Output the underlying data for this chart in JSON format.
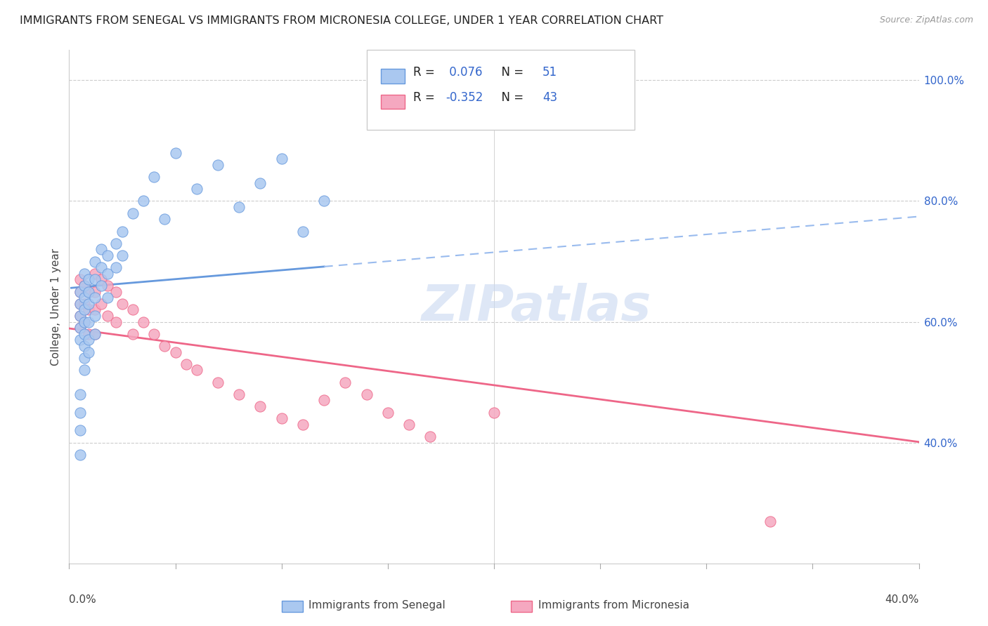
{
  "title": "IMMIGRANTS FROM SENEGAL VS IMMIGRANTS FROM MICRONESIA COLLEGE, UNDER 1 YEAR CORRELATION CHART",
  "source": "Source: ZipAtlas.com",
  "ylabel": "College, Under 1 year",
  "xlim": [
    0.0,
    0.4
  ],
  "ylim": [
    0.2,
    1.05
  ],
  "ytick_vals": [
    0.4,
    0.6,
    0.8,
    1.0
  ],
  "ytick_labels": [
    "40.0%",
    "60.0%",
    "80.0%",
    "100.0%"
  ],
  "senegal_R": 0.076,
  "senegal_N": 51,
  "micronesia_R": -0.352,
  "micronesia_N": 43,
  "senegal_color": "#aac8f0",
  "micronesia_color": "#f5a8c0",
  "senegal_edge_color": "#6699dd",
  "micronesia_edge_color": "#ee6688",
  "senegal_trend_color": "#6699dd",
  "micronesia_trend_color": "#ee6688",
  "senegal_dash_color": "#99bbee",
  "watermark_color": "#d0ddf0",
  "background_color": "#ffffff",
  "grid_color": "#cccccc",
  "border_color": "#cccccc",
  "senegal_x": [
    0.005,
    0.005,
    0.005,
    0.005,
    0.005,
    0.007,
    0.007,
    0.007,
    0.007,
    0.007,
    0.007,
    0.007,
    0.007,
    0.009,
    0.009,
    0.009,
    0.009,
    0.009,
    0.009,
    0.012,
    0.012,
    0.012,
    0.012,
    0.012,
    0.015,
    0.015,
    0.015,
    0.018,
    0.018,
    0.018,
    0.022,
    0.022,
    0.025,
    0.025,
    0.03,
    0.035,
    0.04,
    0.045,
    0.05,
    0.06,
    0.07,
    0.08,
    0.09,
    0.1,
    0.11,
    0.12,
    0.005,
    0.005,
    0.005,
    0.005,
    0.007
  ],
  "senegal_y": [
    0.65,
    0.63,
    0.61,
    0.59,
    0.57,
    0.68,
    0.66,
    0.64,
    0.62,
    0.6,
    0.58,
    0.56,
    0.54,
    0.67,
    0.65,
    0.63,
    0.6,
    0.57,
    0.55,
    0.7,
    0.67,
    0.64,
    0.61,
    0.58,
    0.72,
    0.69,
    0.66,
    0.71,
    0.68,
    0.64,
    0.73,
    0.69,
    0.75,
    0.71,
    0.78,
    0.8,
    0.84,
    0.77,
    0.88,
    0.82,
    0.86,
    0.79,
    0.83,
    0.87,
    0.75,
    0.8,
    0.48,
    0.45,
    0.42,
    0.38,
    0.52
  ],
  "micronesia_x": [
    0.005,
    0.005,
    0.005,
    0.005,
    0.005,
    0.007,
    0.007,
    0.007,
    0.009,
    0.009,
    0.009,
    0.012,
    0.012,
    0.012,
    0.012,
    0.015,
    0.015,
    0.018,
    0.018,
    0.022,
    0.022,
    0.025,
    0.03,
    0.03,
    0.035,
    0.04,
    0.045,
    0.05,
    0.055,
    0.06,
    0.07,
    0.08,
    0.09,
    0.1,
    0.11,
    0.12,
    0.13,
    0.14,
    0.15,
    0.16,
    0.17,
    0.2,
    0.33
  ],
  "micronesia_y": [
    0.67,
    0.65,
    0.63,
    0.61,
    0.59,
    0.66,
    0.63,
    0.6,
    0.65,
    0.62,
    0.58,
    0.68,
    0.65,
    0.62,
    0.58,
    0.67,
    0.63,
    0.66,
    0.61,
    0.65,
    0.6,
    0.63,
    0.62,
    0.58,
    0.6,
    0.58,
    0.56,
    0.55,
    0.53,
    0.52,
    0.5,
    0.48,
    0.46,
    0.44,
    0.43,
    0.47,
    0.5,
    0.48,
    0.45,
    0.43,
    0.41,
    0.45,
    0.27
  ]
}
